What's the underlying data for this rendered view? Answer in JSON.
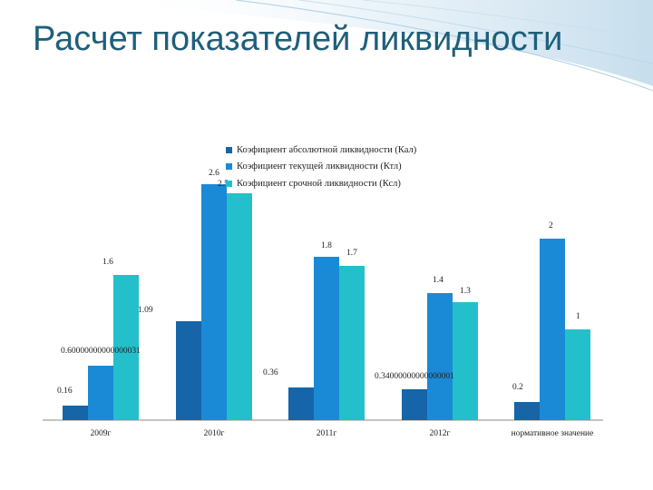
{
  "slide": {
    "title": "Расчет показателей ликвидности"
  },
  "colors": {
    "title": "#1f5f7a",
    "axis": "#888888"
  },
  "chart_data": {
    "type": "bar",
    "categories": [
      "2009г",
      "2010г",
      "2011г",
      "2012г",
      "нормативное значение"
    ],
    "series": [
      {
        "name": "Коэфициент абсолютной ликвидности (Кал)",
        "color": "#1565a8",
        "values": [
          0.16,
          1.09,
          0.36,
          0.34,
          0.2
        ],
        "labels": [
          "0.16",
          "1.09",
          "0.36",
          "0.34000000000000001",
          "0.2"
        ]
      },
      {
        "name": "Коэфициент текущей ликвидности (Ктл)",
        "color": "#1b8ad6",
        "values": [
          0.6,
          2.6,
          1.8,
          1.4,
          2
        ],
        "labels": [
          "0.60000000000000031",
          "2.6",
          "1.8",
          "1.4",
          "2"
        ]
      },
      {
        "name": "Коэфициент срочной ликвидности (Ксл)",
        "color": "#23c0cc",
        "values": [
          1.6,
          2.5,
          1.7,
          1.3,
          1
        ],
        "labels": [
          "1.6",
          "2.5",
          "1.7",
          "1.3",
          "1"
        ]
      }
    ],
    "legend_position": "top-center",
    "grid": false
  }
}
